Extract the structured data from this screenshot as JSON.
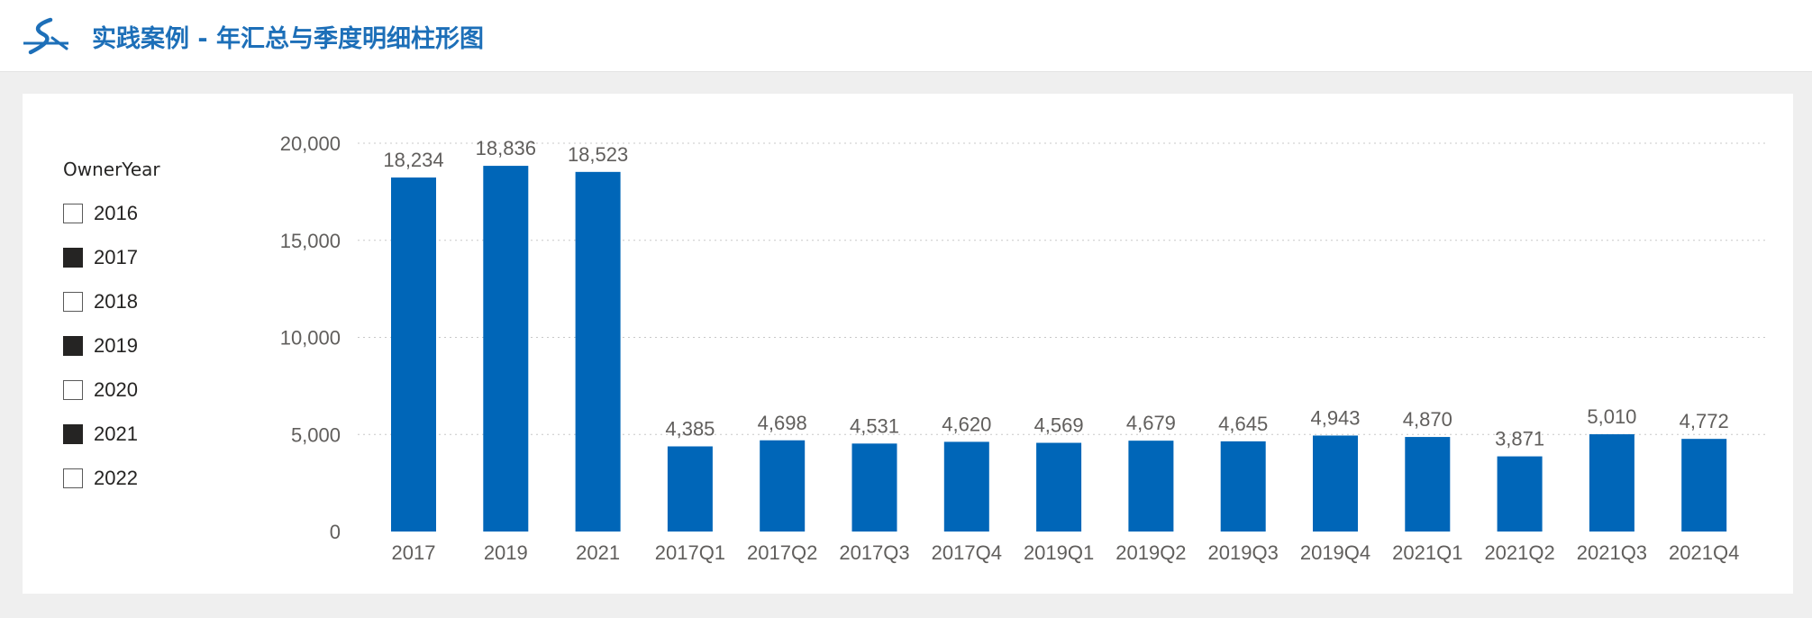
{
  "header": {
    "title": "实践案例 - 年汇总与季度明细柱形图",
    "logo_icon": "stroke-logo-icon"
  },
  "slicer": {
    "title": "OwnerYear",
    "items": [
      {
        "label": "2016",
        "checked": false
      },
      {
        "label": "2017",
        "checked": true
      },
      {
        "label": "2018",
        "checked": false
      },
      {
        "label": "2019",
        "checked": true
      },
      {
        "label": "2020",
        "checked": false
      },
      {
        "label": "2021",
        "checked": true
      },
      {
        "label": "2022",
        "checked": false
      }
    ]
  },
  "colors": {
    "bar": "#0066b8",
    "title": "#1d6fb8",
    "grid": "#c8c8c8",
    "text": "#605e5c"
  },
  "chart_data": {
    "type": "bar",
    "title": "",
    "xlabel": "",
    "ylabel": "",
    "ylim": [
      0,
      20000
    ],
    "yticks": [
      0,
      5000,
      10000,
      15000,
      20000
    ],
    "ytick_labels": [
      "0",
      "5,000",
      "10,000",
      "15,000",
      "20,000"
    ],
    "grid": true,
    "categories": [
      "2017",
      "2019",
      "2021",
      "2017Q1",
      "2017Q2",
      "2017Q3",
      "2017Q4",
      "2019Q1",
      "2019Q2",
      "2019Q3",
      "2019Q4",
      "2021Q1",
      "2021Q2",
      "2021Q3",
      "2021Q4"
    ],
    "values": [
      18234,
      18836,
      18523,
      4385,
      4698,
      4531,
      4620,
      4569,
      4679,
      4645,
      4943,
      4870,
      3871,
      5010,
      4772
    ],
    "value_labels": [
      "18,234",
      "18,836",
      "18,523",
      "4,385",
      "4,698",
      "4,531",
      "4,620",
      "4,569",
      "4,679",
      "4,645",
      "4,943",
      "4,870",
      "3,871",
      "5,010",
      "4,772"
    ]
  }
}
